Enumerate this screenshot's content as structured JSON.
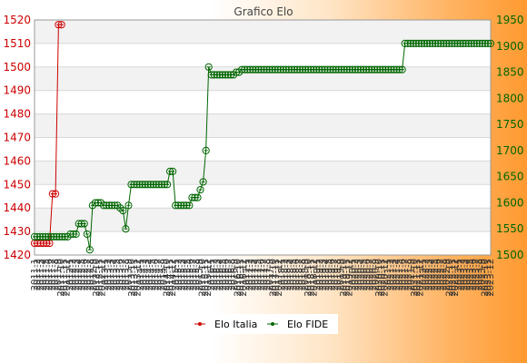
{
  "chart_data": {
    "type": "line",
    "title": "Grafico Elo",
    "left_axis": {
      "ylim": [
        1420,
        1520
      ],
      "ticks": [
        1420,
        1430,
        1440,
        1450,
        1460,
        1470,
        1480,
        1490,
        1500,
        1510,
        1520
      ],
      "color": "#cc0000"
    },
    "right_axis": {
      "ylim": [
        1500,
        1950
      ],
      "ticks": [
        1500,
        1550,
        1600,
        1650,
        1700,
        1750,
        1800,
        1850,
        1900,
        1950
      ],
      "color": "#006600"
    },
    "grid": true,
    "legend_position": "bottom-center",
    "x_tick_labels": [
      "2011-1",
      "2011-2",
      "2011-3",
      "2011-4",
      "2011-5",
      "2011-6",
      "2011-7",
      "2011-8",
      "2011-9",
      "2011-10",
      "2011-11",
      "2011-12",
      "2012-1",
      "2012-2",
      "2012-3",
      "2012-4",
      "2012-5",
      "2012-6",
      "2012-7",
      "2012-8",
      "2012-9",
      "2012-10",
      "2012-11",
      "2012-12",
      "2013-1",
      "2013-2",
      "2013-3",
      "2013-4",
      "2013-5",
      "2013-6",
      "2013-7",
      "2013-8",
      "2013-9",
      "2013-10",
      "2013-11",
      "2013-12",
      "2014-1",
      "2014-2",
      "2014-3",
      "2014-4",
      "2014-5",
      "2014-6",
      "2014-7",
      "2014-8",
      "2014-9",
      "2014-10",
      "2014-11",
      "2014-12",
      "2015-1",
      "2015-2",
      "2015-3",
      "2015-4",
      "2015-5",
      "2015-6",
      "2015-7",
      "2015-8",
      "2015-9",
      "2015-10",
      "2015-11",
      "2015-12",
      "2016-1",
      "2016-2",
      "2016-3",
      "2016-4",
      "2016-5",
      "2016-6",
      "2016-7",
      "2016-8",
      "2016-9",
      "2016-10",
      "2016-11",
      "2016-12",
      "2017-1",
      "2017-2",
      "2017-3",
      "2017-4",
      "2017-5",
      "2017-6",
      "2017-7",
      "2017-8",
      "2017-9",
      "2017-10",
      "2017-11",
      "2017-12",
      "2018-1",
      "2018-2",
      "2018-3",
      "2018-4",
      "2018-5",
      "2018-6",
      "2018-7",
      "2018-8",
      "2018-9",
      "2018-10",
      "2018-11",
      "2018-12",
      "2019-1",
      "2019-2",
      "2019-3",
      "2019-4",
      "2019-5",
      "2019-6",
      "2019-7",
      "2019-8",
      "2019-9",
      "2019-10",
      "2019-11",
      "2019-12",
      "2020-1",
      "2020-2",
      "2020-3",
      "2020-4",
      "2020-5",
      "2020-6",
      "2020-7",
      "2020-8",
      "2020-9",
      "2020-10",
      "2020-11",
      "2020-12",
      "2021-1",
      "2021-2",
      "2021-3",
      "2021-4",
      "2021-5",
      "2021-6",
      "2021-7",
      "2021-8",
      "2021-9",
      "2021-10",
      "2021-11",
      "2021-12",
      "2022-1",
      "2022-2",
      "2022-3",
      "2022-4",
      "2022-5",
      "2022-6",
      "2022-7",
      "2022-8",
      "2022-9",
      "2022-10",
      "2022-11",
      "2022-12",
      "2023-1",
      "2023-2",
      "2023-3",
      "2023-4",
      "2023-5",
      "2023-6",
      "2023-7",
      "2023-8",
      "2023-9",
      "2023-10",
      "2023-11",
      "2023-12"
    ],
    "series": [
      {
        "name": "Elo Italia",
        "axis": "left",
        "color": "#cc0000",
        "values": [
          1425,
          1425,
          1425,
          1425,
          1425,
          1425,
          1446,
          1446,
          1518,
          1518
        ]
      },
      {
        "name": "Elo FIDE",
        "axis": "right",
        "color": "#006600",
        "values": [
          1535,
          1535,
          1535,
          1535,
          1535,
          1535,
          1535,
          1535,
          1535,
          1535,
          1535,
          1535,
          1535,
          1540,
          1540,
          1540,
          1560,
          1560,
          1560,
          1540,
          1510,
          1595,
          1600,
          1600,
          1600,
          1595,
          1595,
          1595,
          1595,
          1595,
          1595,
          1590,
          1585,
          1550,
          1595,
          1635,
          1635,
          1635,
          1635,
          1635,
          1635,
          1635,
          1635,
          1635,
          1635,
          1635,
          1635,
          1635,
          1635,
          1660,
          1660,
          1595,
          1595,
          1595,
          1595,
          1595,
          1595,
          1610,
          1610,
          1610,
          1625,
          1640,
          1700,
          1860,
          1845,
          1845,
          1845,
          1845,
          1845,
          1845,
          1845,
          1845,
          1845,
          1850,
          1850,
          1855,
          1855,
          1855,
          1855,
          1855,
          1855,
          1855,
          1855,
          1855,
          1855,
          1855,
          1855,
          1855,
          1855,
          1855,
          1855,
          1855,
          1855,
          1855,
          1855,
          1855,
          1855,
          1855,
          1855,
          1855,
          1855,
          1855,
          1855,
          1855,
          1855,
          1855,
          1855,
          1855,
          1855,
          1855,
          1855,
          1855,
          1855,
          1855,
          1855,
          1855,
          1855,
          1855,
          1855,
          1855,
          1855,
          1855,
          1855,
          1855,
          1855,
          1855,
          1855,
          1855,
          1855,
          1855,
          1855,
          1855,
          1855,
          1855,
          1905,
          1905,
          1905,
          1905,
          1905,
          1905,
          1905,
          1905,
          1905,
          1905,
          1905,
          1905,
          1905,
          1905,
          1905,
          1905,
          1905,
          1905,
          1905,
          1905,
          1905,
          1905,
          1905,
          1905,
          1905,
          1905,
          1905,
          1905,
          1905,
          1905,
          1905,
          1905
        ]
      }
    ]
  }
}
